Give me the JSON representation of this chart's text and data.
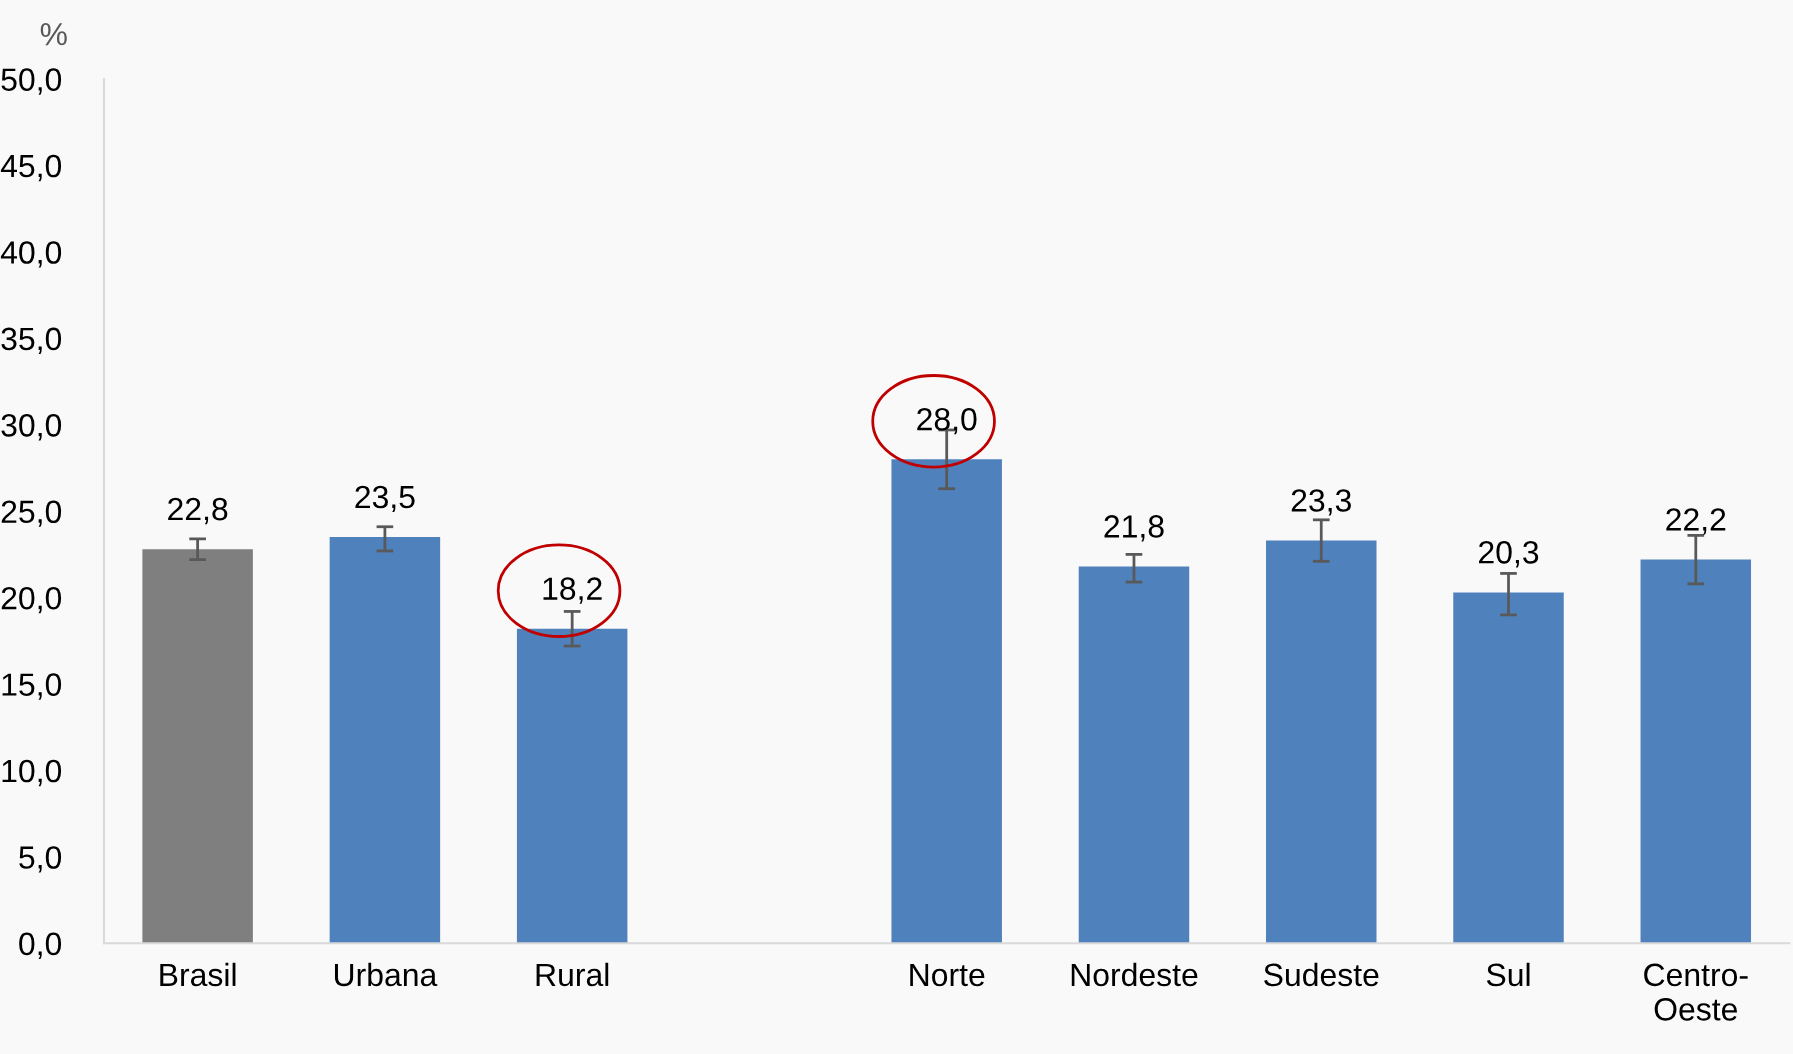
{
  "chart_data": {
    "type": "bar",
    "ylabel": "%",
    "categories": [
      "Brasil",
      "Urbana",
      "Rural",
      null,
      "Norte",
      "Nordeste",
      "Sudeste",
      "Sul",
      "Centro-\nOeste"
    ],
    "values": [
      22.8,
      23.5,
      18.2,
      null,
      28.0,
      21.8,
      23.3,
      20.3,
      22.2
    ],
    "colors": [
      "#7f7f7f",
      "#4f81bd",
      "#4f81bd",
      "#4f81bd",
      "#4f81bd",
      "#4f81bd",
      "#4f81bd",
      "#4f81bd",
      "#4f81bd"
    ],
    "errors": [
      [
        22.2,
        23.4
      ],
      [
        22.7,
        24.1
      ],
      [
        17.2,
        19.2
      ],
      null,
      [
        26.3,
        29.7
      ],
      [
        20.9,
        22.5
      ],
      [
        22.1,
        24.5
      ],
      [
        19.0,
        21.4
      ],
      [
        20.8,
        23.6
      ]
    ],
    "value_labels": [
      "22,8",
      "23,5",
      "18,2",
      null,
      "28,0",
      "21,8",
      "23,3",
      "20,3",
      "22,2"
    ],
    "ylim": [
      0,
      50
    ],
    "yticks": [
      {
        "value": 0,
        "label": "0,0"
      },
      {
        "value": 5,
        "label": "5,0"
      },
      {
        "value": 10,
        "label": "10,0"
      },
      {
        "value": 15,
        "label": "15,0"
      },
      {
        "value": 20,
        "label": "20,0"
      },
      {
        "value": 25,
        "label": "25,0"
      },
      {
        "value": 30,
        "label": "30,0"
      },
      {
        "value": 35,
        "label": "35,0"
      },
      {
        "value": 40,
        "label": "40,0"
      },
      {
        "value": 45,
        "label": "45,0"
      },
      {
        "value": 50,
        "label": "50,0"
      }
    ],
    "grid": false,
    "legend": false
  }
}
